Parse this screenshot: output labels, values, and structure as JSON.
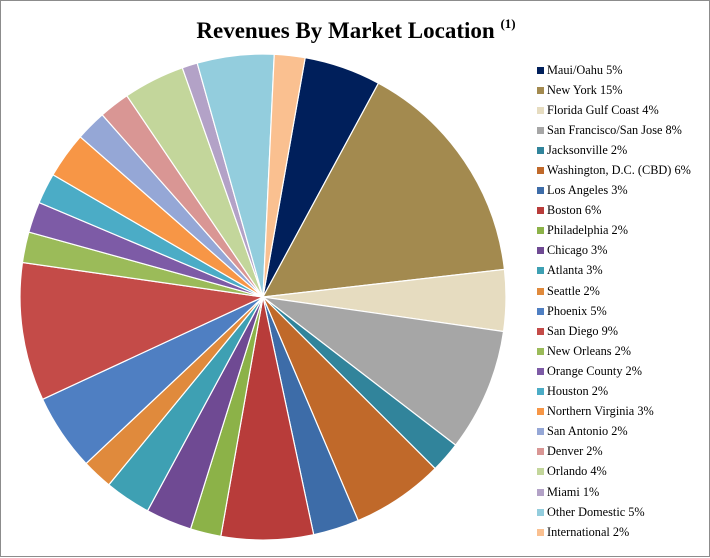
{
  "chart_data": {
    "type": "pie",
    "title": "Revenues By Market Location",
    "title_superscript": "(1)",
    "legend_position": "right",
    "series": [
      {
        "name": "Maui/Oahu",
        "value": 5,
        "label": "Maui/Oahu 5%",
        "color": "#001f5b"
      },
      {
        "name": "New York",
        "value": 15,
        "label": "New York 15%",
        "color": "#a38a4f"
      },
      {
        "name": "Florida Gulf Coast",
        "value": 4,
        "label": "Florida Gulf Coast 4%",
        "color": "#e6dcc0"
      },
      {
        "name": "San Francisco/San Jose",
        "value": 8,
        "label": "San Francisco/San Jose 8%",
        "color": "#a6a6a6"
      },
      {
        "name": "Jacksonville",
        "value": 2,
        "label": "Jacksonville 2%",
        "color": "#31849b"
      },
      {
        "name": "Washington, D.C. (CBD)",
        "value": 6,
        "label": "Washington, D.C. (CBD) 6%",
        "color": "#c0692a"
      },
      {
        "name": "Los Angeles",
        "value": 3,
        "label": "Los Angeles 3%",
        "color": "#3d6ca8"
      },
      {
        "name": "Boston",
        "value": 6,
        "label": "Boston 6%",
        "color": "#b83c3a"
      },
      {
        "name": "Philadelphia",
        "value": 2,
        "label": "Philadelphia 2%",
        "color": "#8cb248"
      },
      {
        "name": "Chicago",
        "value": 3,
        "label": "Chicago 3%",
        "color": "#6f4a93"
      },
      {
        "name": "Atlanta",
        "value": 3,
        "label": "Atlanta 3%",
        "color": "#3ea0b3"
      },
      {
        "name": "Seattle",
        "value": 2,
        "label": "Seattle 2%",
        "color": "#e08a3c"
      },
      {
        "name": "Phoenix",
        "value": 5,
        "label": "Phoenix 5%",
        "color": "#4f7fc2"
      },
      {
        "name": "San Diego",
        "value": 9,
        "label": "San Diego 9%",
        "color": "#c44b48"
      },
      {
        "name": "New Orleans",
        "value": 2,
        "label": "New Orleans 2%",
        "color": "#9bbb59"
      },
      {
        "name": "Orange County",
        "value": 2,
        "label": "Orange County 2%",
        "color": "#7d5ba6"
      },
      {
        "name": "Houston",
        "value": 2,
        "label": "Houston 2%",
        "color": "#4bacc6"
      },
      {
        "name": "Northern Virginia",
        "value": 3,
        "label": "Northern Virginia 3%",
        "color": "#f79646"
      },
      {
        "name": "San Antonio",
        "value": 2,
        "label": "San Antonio 2%",
        "color": "#95a7d6"
      },
      {
        "name": "Denver",
        "value": 2,
        "label": "Denver 2%",
        "color": "#d99694"
      },
      {
        "name": "Orlando",
        "value": 4,
        "label": "Orlando 4%",
        "color": "#c3d69b"
      },
      {
        "name": "Miami",
        "value": 1,
        "label": "Miami 1%",
        "color": "#b3a2c7"
      },
      {
        "name": "Other Domestic",
        "value": 5,
        "label": "Other Domestic 5%",
        "color": "#93cddd"
      },
      {
        "name": "International",
        "value": 2,
        "label": "International 2%",
        "color": "#fac090"
      }
    ]
  }
}
